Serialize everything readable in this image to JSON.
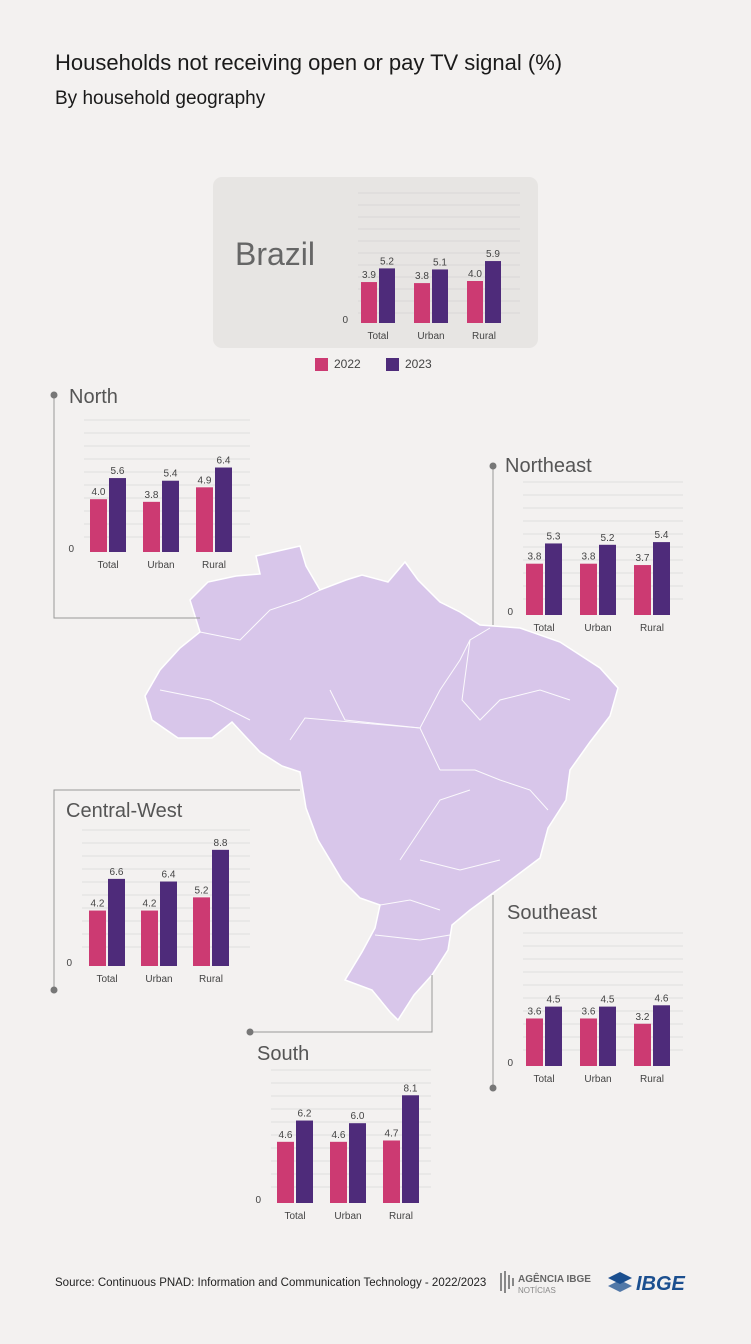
{
  "title": "Households not receiving open or pay TV signal (%)",
  "subtitle": "By household geography",
  "source": "Source: Continuous PNAD: Information and Communication Technology - 2022/2023",
  "logos": {
    "agencia_top": "AGÊNCIA IBGE",
    "agencia_bottom": "NOTÍCIAS",
    "ibge": "IBGE"
  },
  "colors": {
    "y2022": "#cc3a72",
    "y2023": "#4e2b7a",
    "map": "#d8c6ea",
    "grid": "#cccccc"
  },
  "legend": [
    "2022",
    "2023"
  ],
  "chart_data": [
    {
      "type": "bar",
      "title": "Brazil",
      "categories": [
        "Total",
        "Urban",
        "Rural"
      ],
      "zero_label": "0",
      "series": [
        {
          "name": "2022",
          "values": [
            3.9,
            3.8,
            4.0
          ]
        },
        {
          "name": "2023",
          "values": [
            5.2,
            5.1,
            5.9
          ]
        }
      ]
    },
    {
      "type": "bar",
      "title": "North",
      "categories": [
        "Total",
        "Urban",
        "Rural"
      ],
      "zero_label": "0",
      "series": [
        {
          "name": "2022",
          "values": [
            4.0,
            3.8,
            4.9
          ]
        },
        {
          "name": "2023",
          "values": [
            5.6,
            5.4,
            6.4
          ]
        }
      ]
    },
    {
      "type": "bar",
      "title": "Northeast",
      "categories": [
        "Total",
        "Urban",
        "Rural"
      ],
      "zero_label": "0",
      "series": [
        {
          "name": "2022",
          "values": [
            3.8,
            3.8,
            3.7
          ]
        },
        {
          "name": "2023",
          "values": [
            5.3,
            5.2,
            5.4
          ]
        }
      ]
    },
    {
      "type": "bar",
      "title": "Central-West",
      "categories": [
        "Total",
        "Urban",
        "Rural"
      ],
      "zero_label": "0",
      "series": [
        {
          "name": "2022",
          "values": [
            4.2,
            4.2,
            5.2
          ]
        },
        {
          "name": "2023",
          "values": [
            6.6,
            6.4,
            8.8
          ]
        }
      ]
    },
    {
      "type": "bar",
      "title": "Southeast",
      "categories": [
        "Total",
        "Urban",
        "Rural"
      ],
      "zero_label": "0",
      "series": [
        {
          "name": "2022",
          "values": [
            3.6,
            3.6,
            3.2
          ]
        },
        {
          "name": "2023",
          "values": [
            4.5,
            4.5,
            4.6
          ]
        }
      ]
    },
    {
      "type": "bar",
      "title": "South",
      "categories": [
        "Total",
        "Urban",
        "Rural"
      ],
      "zero_label": "0",
      "series": [
        {
          "name": "2022",
          "values": [
            4.6,
            4.6,
            4.7
          ]
        },
        {
          "name": "2023",
          "values": [
            6.2,
            6.0,
            8.1
          ]
        }
      ]
    }
  ]
}
